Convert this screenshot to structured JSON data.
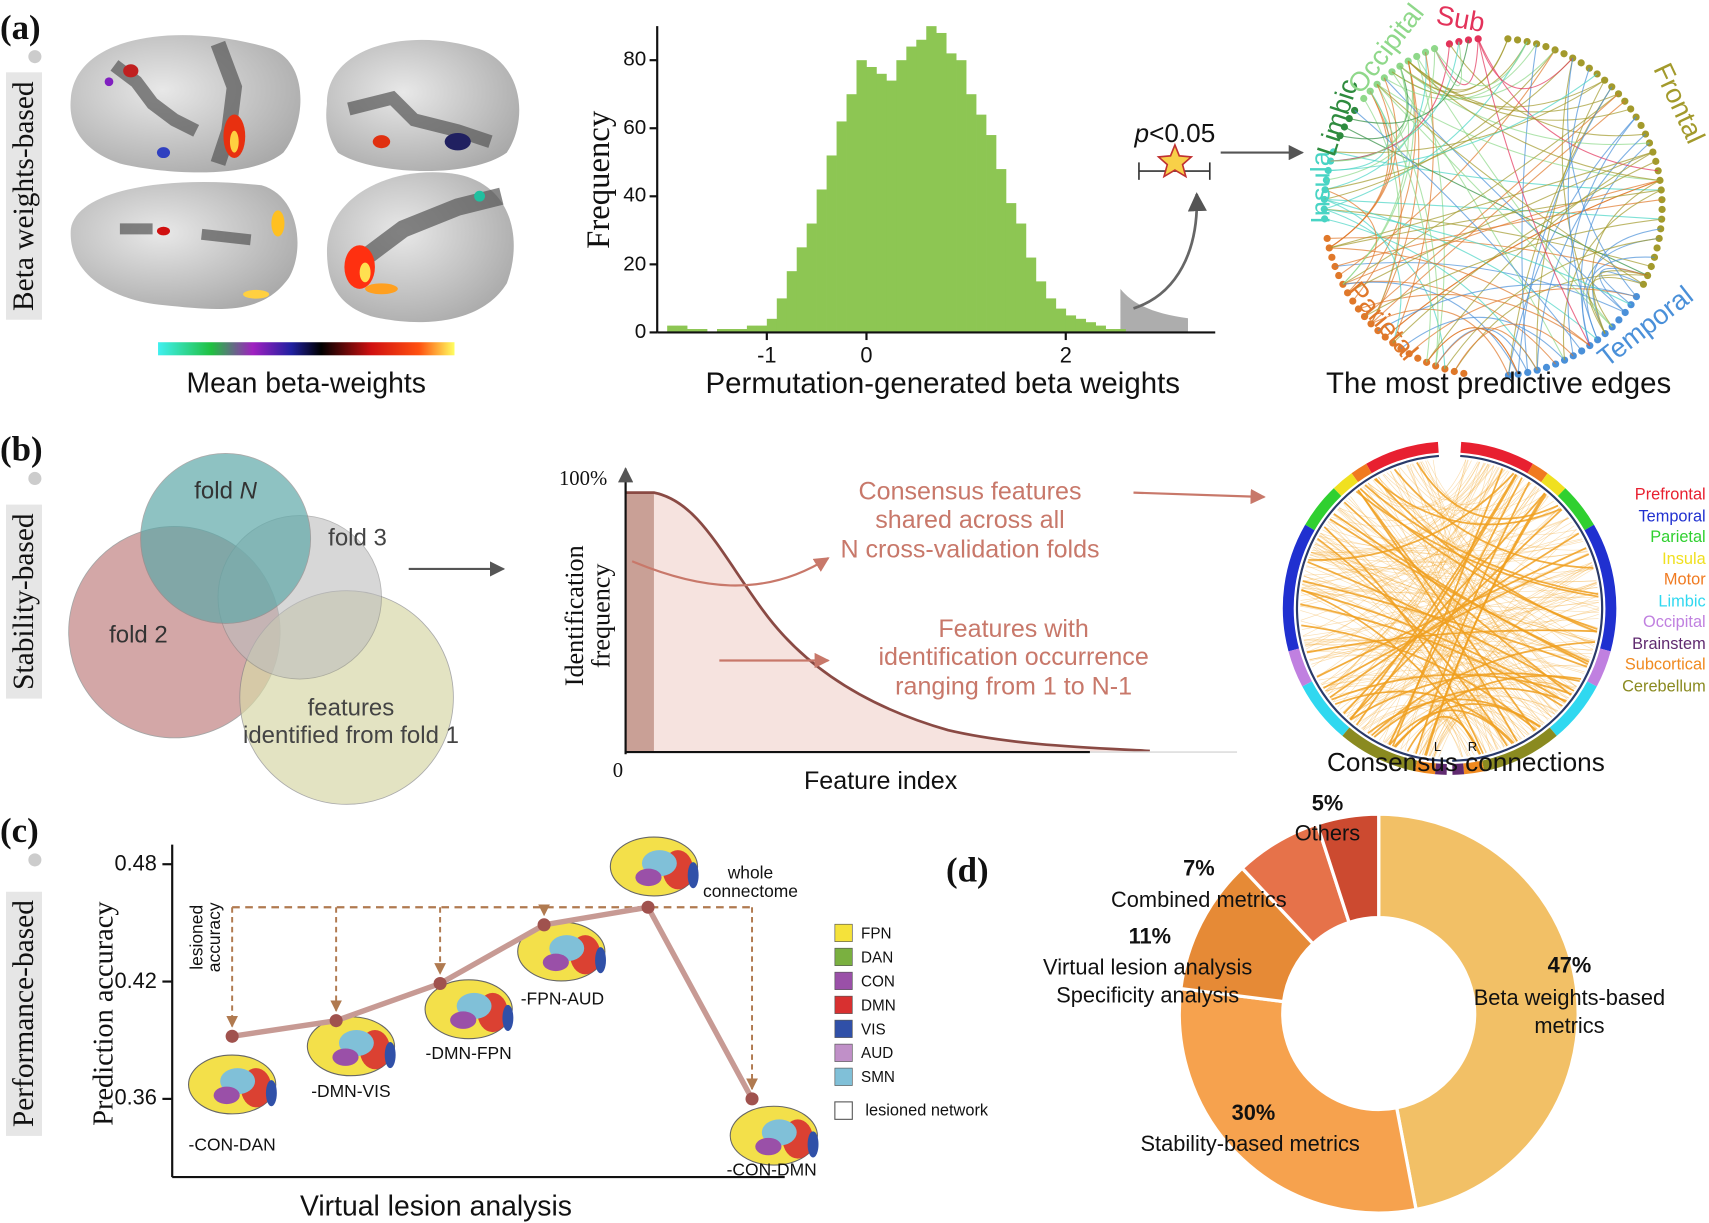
{
  "panels": {
    "a": {
      "label": "(a)",
      "side_label": "Beta weights-based",
      "colorbar_label": "Mean beta-weights",
      "p": "p",
      "threshold": "<0.05",
      "chord_title": "The most predictive edges",
      "regions": [
        {
          "name": "Frontal",
          "color": "#a39a2c"
        },
        {
          "name": "Temporal",
          "color": "#4a90d9"
        },
        {
          "name": "Parietal",
          "color": "#e0782a"
        },
        {
          "name": "Insula",
          "color": "#48d4c4"
        },
        {
          "name": "Limbic",
          "color": "#2e8b3e"
        },
        {
          "name": "Occipital",
          "color": "#8fd88a"
        },
        {
          "name": "Sub",
          "color": "#e3325a"
        }
      ]
    },
    "b": {
      "label": "(b)",
      "side_label": "Stability-based",
      "fold_n": "fold",
      "fold_n_var": "N",
      "fold_3": "fold 3",
      "fold_2": "fold 2",
      "fold_1": "features\nidentified from fold 1",
      "y_label": "Identification\nfrequency",
      "y_top": "100%",
      "x_origin": "0",
      "x_label": "Feature index",
      "consensus_note": "Consensus features\nshared across all\nN cross-validation folds",
      "partial_note": "Features with\nidentification occurrence\nranging from 1 to N-1",
      "chord_title": "Consensus connections",
      "left": "L",
      "right": "R",
      "regions": [
        {
          "name": "Prefrontal",
          "color": "#e82030"
        },
        {
          "name": "Temporal",
          "color": "#2030d0"
        },
        {
          "name": "Parietal",
          "color": "#30d030"
        },
        {
          "name": "Insula",
          "color": "#f0e020"
        },
        {
          "name": "Motor",
          "color": "#f07a20"
        },
        {
          "name": "Limbic",
          "color": "#30d8f0"
        },
        {
          "name": "Occipital",
          "color": "#c080e0"
        },
        {
          "name": "Brainstem",
          "color": "#602a70"
        },
        {
          "name": "Subcortical",
          "color": "#f08a20"
        },
        {
          "name": "Cerebellum",
          "color": "#8a8a20"
        }
      ]
    },
    "c": {
      "label": "(c)",
      "side_label": "Performance-based"
    },
    "d": {
      "label": "(d)"
    }
  },
  "chart_data": [
    {
      "type": "histogram",
      "ylabel": "Frequency",
      "xlabel": "Permutation-generated beta weights",
      "color": "#8dc653",
      "bins": [
        -2,
        -1.9,
        -1.8,
        -1.7,
        -1.6,
        -1.5,
        -1.4,
        -1.3,
        -1.2,
        -1.1,
        -1,
        -0.9,
        -0.8,
        -0.7,
        -0.6,
        -0.5,
        -0.4,
        -0.3,
        -0.2,
        -0.1,
        0,
        0.1,
        0.2,
        0.3,
        0.4,
        0.5,
        0.6,
        0.7,
        0.8,
        0.9,
        1,
        1.1,
        1.2,
        1.3,
        1.4,
        1.5,
        1.6,
        1.7,
        1.8,
        1.9,
        2,
        2.1,
        2.2,
        2.3,
        2.4,
        2.5,
        2.6
      ],
      "values": [
        2,
        2,
        1,
        1,
        0,
        1,
        1,
        1,
        2,
        2,
        4,
        10,
        18,
        25,
        32,
        42,
        52,
        62,
        70,
        80,
        78,
        76,
        74,
        80,
        84,
        86,
        90,
        88,
        82,
        80,
        70,
        64,
        58,
        48,
        38,
        32,
        22,
        15,
        10,
        7,
        5,
        4,
        3,
        2,
        1,
        1
      ],
      "xlim": [
        -2.1,
        3.5
      ],
      "xticks": [
        -1,
        0,
        2
      ],
      "ylim": [
        0,
        90
      ],
      "yticks": [
        0,
        20,
        40,
        60,
        80
      ]
    },
    {
      "type": "line",
      "ylabel": "Prediction accuracy",
      "xlabel": "Virtual lesion analysis",
      "color": "#c79a94",
      "marker_color": "#a0524e",
      "categories": [
        "-CON-DAN",
        "-DMN-VIS",
        "-DMN-FPN",
        "-FPN-AUD",
        "whole\nconnectome",
        "-CON-DMN"
      ],
      "values": [
        0.392,
        0.4,
        0.419,
        0.449,
        0.458,
        0.36
      ],
      "ylim": [
        0.32,
        0.49
      ],
      "yticks": [
        0.36,
        0.42,
        0.48
      ],
      "annotation": "lesioned\naccuracy",
      "networks": [
        {
          "name": "FPN",
          "color": "#f5e23a"
        },
        {
          "name": "DAN",
          "color": "#7ab040"
        },
        {
          "name": "CON",
          "color": "#9a50a8"
        },
        {
          "name": "DMN",
          "color": "#d83030"
        },
        {
          "name": "VIS",
          "color": "#3050a8"
        },
        {
          "name": "AUD",
          "color": "#c090c8"
        },
        {
          "name": "SMN",
          "color": "#80c0d8"
        }
      ],
      "lesioned_label": "lesioned network"
    },
    {
      "type": "pie",
      "categories": [
        "Beta weights-based\nmetrics",
        "Stability-based metrics",
        "Virtual lesion analysis\nSpecificity analysis",
        "Combined metrics",
        "Others"
      ],
      "values": [
        47,
        30,
        11,
        7,
        5
      ],
      "value_labels": [
        "47%",
        "30%",
        "11%",
        "7%",
        "5%"
      ],
      "colors": [
        "#f2c066",
        "#f6a24e",
        "#e68a36",
        "#e6724a",
        "#cc4a30"
      ]
    }
  ]
}
